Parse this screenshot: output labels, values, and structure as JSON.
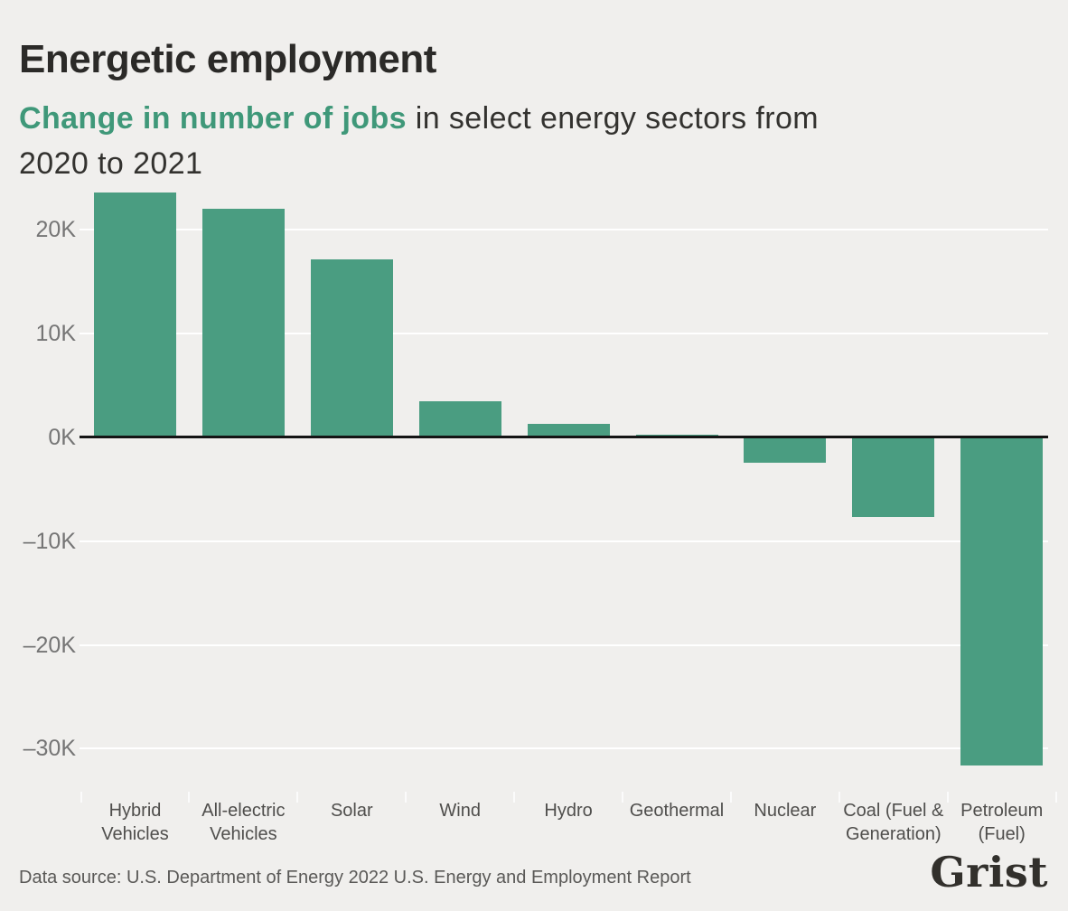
{
  "header": {
    "title": "Energetic employment",
    "subtitle_accent": "Change in number of jobs",
    "subtitle_rest_line1": " in select energy sectors from",
    "subtitle_line2": "2020 to 2021"
  },
  "chart_data": {
    "type": "bar",
    "title": "Energetic employment",
    "subtitle": "Change in number of jobs in select energy sectors from 2020 to 2021",
    "categories": [
      "Hybrid Vehicles",
      "All-electric Vehicles",
      "Solar",
      "Wind",
      "Hydro",
      "Geothermal",
      "Nuclear",
      "Coal (Fuel & Generation)",
      "Petroleum (Fuel)"
    ],
    "category_label_lines": [
      [
        "Hybrid",
        "Vehicles"
      ],
      [
        "All-electric",
        "Vehicles"
      ],
      [
        "Solar"
      ],
      [
        "Wind"
      ],
      [
        "Hydro"
      ],
      [
        "Geothermal"
      ],
      [
        "Nuclear"
      ],
      [
        "Coal (Fuel &",
        "Generation)"
      ],
      [
        "Petroleum",
        "(Fuel)"
      ]
    ],
    "values_thousands": [
      23.6,
      22.0,
      17.2,
      3.5,
      1.3,
      0.3,
      -2.4,
      -7.7,
      -31.6
    ],
    "unit": "K jobs",
    "xlabel": "",
    "ylabel": "",
    "ylim": [
      -33,
      25
    ],
    "yticks": [
      20,
      10,
      0,
      -10,
      -20,
      -30
    ],
    "ytick_labels": [
      "20K",
      "10K",
      "0K",
      "–10K",
      "–20K",
      "–30K"
    ],
    "grid": "horizontal",
    "legend": "none"
  },
  "colors": {
    "background": "#f0efed",
    "bar": "#4a9d81",
    "accent_text": "#3f9879",
    "title_text": "#2b2a28",
    "subtitle_text": "#33322f",
    "axis_label": "#757575",
    "category_label": "#4f4e4c",
    "footer_text": "#5a5957",
    "logo_text": "#32302c",
    "gridline": "#ffffff",
    "zero_line": "#141414"
  },
  "footer": {
    "source": "Data source: U.S. Department of Energy 2022 U.S. Energy and Employment Report",
    "logo": "Grist"
  }
}
